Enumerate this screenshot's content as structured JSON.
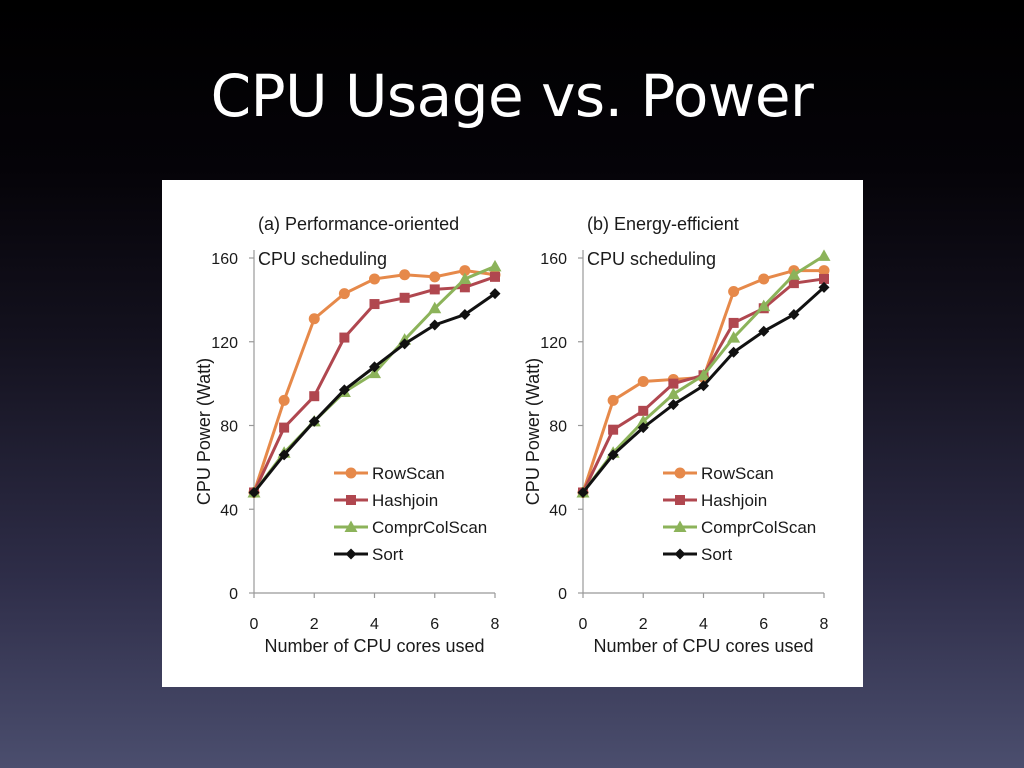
{
  "slide": {
    "title": "CPU Usage vs. Power"
  },
  "colors": {
    "RowScan": "#e6894a",
    "Hashjoin": "#b0474f",
    "ComprColScan": "#8cb35a",
    "Sort": "#111111"
  },
  "chart_data": [
    {
      "type": "line",
      "title": "(a) Performance-oriented",
      "subtitle": "CPU scheduling",
      "xlabel": "Number of CPU cores used",
      "ylabel": "CPU Power (Watt)",
      "xlim": [
        0,
        8
      ],
      "ylim": [
        0,
        160
      ],
      "xticks": [
        "0",
        "2",
        "4",
        "6",
        "8"
      ],
      "yticks": [
        "0",
        "40",
        "80",
        "120",
        "160"
      ],
      "grid": false,
      "legend": "bottom-right",
      "x": [
        0,
        1,
        2,
        3,
        4,
        5,
        6,
        7,
        8
      ],
      "series": [
        {
          "name": "RowScan",
          "marker": "circle",
          "values": [
            48,
            92,
            131,
            143,
            150,
            152,
            151,
            154,
            152
          ]
        },
        {
          "name": "Hashjoin",
          "marker": "square",
          "values": [
            48,
            79,
            94,
            122,
            138,
            141,
            145,
            146,
            151
          ]
        },
        {
          "name": "ComprColScan",
          "marker": "triangle",
          "values": [
            48,
            67,
            82,
            96,
            105,
            121,
            136,
            150,
            156
          ]
        },
        {
          "name": "Sort",
          "marker": "diamond",
          "values": [
            48,
            66,
            82,
            97,
            108,
            119,
            128,
            133,
            143
          ]
        }
      ]
    },
    {
      "type": "line",
      "title": "(b) Energy-efficient",
      "subtitle": "CPU scheduling",
      "xlabel": "Number of CPU cores used",
      "ylabel": "CPU Power (Watt)",
      "xlim": [
        0,
        8
      ],
      "ylim": [
        0,
        160
      ],
      "xticks": [
        "0",
        "2",
        "4",
        "6",
        "8"
      ],
      "yticks": [
        "0",
        "40",
        "80",
        "120",
        "160"
      ],
      "grid": false,
      "legend": "bottom-right",
      "x": [
        0,
        1,
        2,
        3,
        4,
        5,
        6,
        7,
        8
      ],
      "series": [
        {
          "name": "RowScan",
          "marker": "circle",
          "values": [
            48,
            92,
            101,
            102,
            103,
            144,
            150,
            154,
            154
          ]
        },
        {
          "name": "Hashjoin",
          "marker": "square",
          "values": [
            48,
            78,
            87,
            100,
            104,
            129,
            136,
            148,
            150
          ]
        },
        {
          "name": "ComprColScan",
          "marker": "triangle",
          "values": [
            48,
            67,
            82,
            95,
            104,
            122,
            137,
            152,
            161
          ]
        },
        {
          "name": "Sort",
          "marker": "diamond",
          "values": [
            48,
            66,
            79,
            90,
            99,
            115,
            125,
            133,
            146
          ]
        }
      ]
    }
  ]
}
